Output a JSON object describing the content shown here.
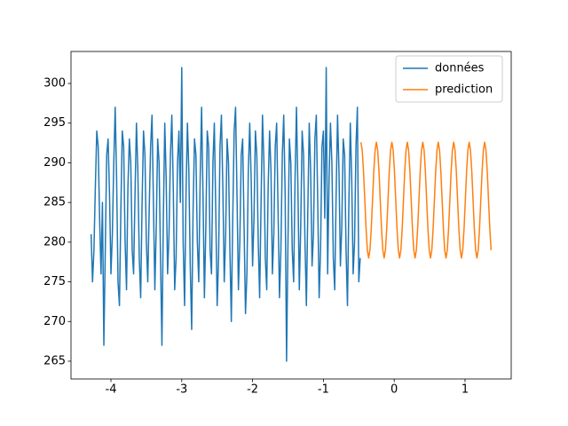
{
  "chart_data": {
    "type": "line",
    "xlim": [
      -4.564,
      1.652
    ],
    "ylim": [
      262.76,
      304.03
    ],
    "xticks": [
      -4,
      -3,
      -2,
      -1,
      0,
      1
    ],
    "yticks": [
      265,
      270,
      275,
      280,
      285,
      290,
      295,
      300
    ],
    "legend": "upper right",
    "series": [
      {
        "name": "données",
        "color": "#1f77b4",
        "x": [
          -4.28,
          -4.26,
          -4.24,
          -4.22,
          -4.2,
          -4.18,
          -4.16,
          -4.14,
          -4.12,
          -4.1,
          -4.08,
          -4.06,
          -4.04,
          -4.02,
          -4.0,
          -3.98,
          -3.96,
          -3.94,
          -3.92,
          -3.9,
          -3.88,
          -3.86,
          -3.84,
          -3.82,
          -3.8,
          -3.78,
          -3.76,
          -3.74,
          -3.72,
          -3.7,
          -3.68,
          -3.66,
          -3.64,
          -3.62,
          -3.6,
          -3.58,
          -3.56,
          -3.54,
          -3.52,
          -3.5,
          -3.48,
          -3.46,
          -3.44,
          -3.42,
          -3.4,
          -3.38,
          -3.36,
          -3.34,
          -3.32,
          -3.3,
          -3.28,
          -3.26,
          -3.24,
          -3.22,
          -3.2,
          -3.18,
          -3.16,
          -3.14,
          -3.12,
          -3.1,
          -3.08,
          -3.06,
          -3.04,
          -3.02,
          -3.0,
          -2.98,
          -2.96,
          -2.94,
          -2.92,
          -2.9,
          -2.88,
          -2.86,
          -2.84,
          -2.82,
          -2.8,
          -2.78,
          -2.76,
          -2.74,
          -2.72,
          -2.7,
          -2.68,
          -2.66,
          -2.64,
          -2.62,
          -2.6,
          -2.58,
          -2.56,
          -2.54,
          -2.52,
          -2.5,
          -2.48,
          -2.46,
          -2.44,
          -2.42,
          -2.4,
          -2.38,
          -2.36,
          -2.34,
          -2.32,
          -2.3,
          -2.28,
          -2.26,
          -2.24,
          -2.22,
          -2.2,
          -2.18,
          -2.16,
          -2.14,
          -2.12,
          -2.1,
          -2.08,
          -2.06,
          -2.04,
          -2.02,
          -2.0,
          -1.98,
          -1.96,
          -1.94,
          -1.92,
          -1.9,
          -1.88,
          -1.86,
          -1.84,
          -1.82,
          -1.8,
          -1.78,
          -1.76,
          -1.74,
          -1.72,
          -1.7,
          -1.68,
          -1.66,
          -1.64,
          -1.62,
          -1.6,
          -1.58,
          -1.56,
          -1.54,
          -1.52,
          -1.5,
          -1.48,
          -1.46,
          -1.44,
          -1.42,
          -1.4,
          -1.38,
          -1.36,
          -1.34,
          -1.32,
          -1.3,
          -1.28,
          -1.26,
          -1.24,
          -1.22,
          -1.2,
          -1.18,
          -1.16,
          -1.14,
          -1.12,
          -1.1,
          -1.08,
          -1.06,
          -1.04,
          -1.02,
          -1.0,
          -0.98,
          -0.96,
          -0.94,
          -0.92,
          -0.9,
          -0.88,
          -0.86,
          -0.84,
          -0.82,
          -0.8,
          -0.78,
          -0.76,
          -0.74,
          -0.72,
          -0.7,
          -0.68,
          -0.66,
          -0.64,
          -0.62,
          -0.6,
          -0.58,
          -0.56,
          -0.54,
          -0.52,
          -0.5,
          -0.48
        ],
        "values": [
          281,
          275,
          279,
          287,
          294,
          292,
          283,
          276,
          285,
          267,
          279,
          291,
          293,
          286,
          276,
          281,
          290,
          297,
          288,
          275,
          272,
          284,
          294,
          292,
          280,
          274,
          287,
          293,
          290,
          279,
          276,
          286,
          295,
          289,
          278,
          273,
          285,
          294,
          291,
          280,
          275,
          284,
          292,
          296,
          285,
          274,
          282,
          293,
          290,
          278,
          267,
          283,
          295,
          288,
          276,
          281,
          291,
          296,
          287,
          274,
          278,
          290,
          294,
          285,
          302,
          280,
          272,
          286,
          295,
          289,
          277,
          269,
          284,
          293,
          291,
          280,
          275,
          288,
          297,
          286,
          273,
          282,
          294,
          292,
          279,
          276,
          290,
          295,
          284,
          272,
          278,
          292,
          296,
          287,
          275,
          281,
          293,
          290,
          279,
          270,
          283,
          294,
          297,
          286,
          274,
          280,
          291,
          293,
          282,
          271,
          276,
          289,
          295,
          288,
          277,
          283,
          294,
          291,
          280,
          273,
          285,
          296,
          290,
          278,
          274,
          287,
          294,
          289,
          276,
          281,
          292,
          295,
          284,
          273,
          279,
          291,
          296,
          286,
          265,
          280,
          293,
          290,
          279,
          275,
          288,
          297,
          287,
          274,
          282,
          294,
          291,
          280,
          272,
          284,
          295,
          289,
          277,
          281,
          293,
          296,
          285,
          273,
          279,
          292,
          294,
          283,
          302,
          276,
          288,
          295,
          290,
          278,
          274,
          286,
          296,
          289,
          277,
          282,
          293,
          291,
          279,
          272,
          285,
          295,
          288,
          276,
          280,
          292,
          297,
          275,
          278
        ]
      },
      {
        "name": "prediction",
        "color": "#ff7f0e",
        "x": [
          -0.47,
          -0.4518,
          -0.4336,
          -0.4154,
          -0.3972,
          -0.379,
          -0.3608,
          -0.3426,
          -0.3244,
          -0.3062,
          -0.288,
          -0.2698,
          -0.2516,
          -0.2334,
          -0.2152,
          -0.197,
          -0.1788,
          -0.1606,
          -0.1424,
          -0.1242,
          -0.106,
          -0.0878,
          -0.0696,
          -0.0514,
          -0.0332,
          -0.015,
          0.0032,
          0.0214,
          0.0396,
          0.0578,
          0.076,
          0.0942,
          0.1124,
          0.1306,
          0.1488,
          0.167,
          0.1852,
          0.2034,
          0.2216,
          0.2398,
          0.258,
          0.2762,
          0.2944,
          0.3126,
          0.3308,
          0.349,
          0.3672,
          0.3854,
          0.4036,
          0.4218,
          0.44,
          0.4582,
          0.4764,
          0.4946,
          0.5128,
          0.531,
          0.5492,
          0.5674,
          0.5856,
          0.6038,
          0.622,
          0.6402,
          0.6584,
          0.6766,
          0.6948,
          0.713,
          0.7312,
          0.7494,
          0.7676,
          0.7858,
          0.804,
          0.8222,
          0.8404,
          0.8586,
          0.8768,
          0.895,
          0.9132,
          0.9314,
          0.9496,
          0.9678,
          0.986,
          1.0042,
          1.0224,
          1.0406,
          1.0588,
          1.077,
          1.0952,
          1.1134,
          1.1316,
          1.1498,
          1.168,
          1.1862,
          1.2044,
          1.2226,
          1.2408,
          1.259,
          1.2772,
          1.2954,
          1.3136,
          1.3318,
          1.35,
          1.3682
        ],
        "values": [
          292.6,
          291.6,
          288.95,
          285.3,
          281.65,
          279.0,
          278.0,
          279.0,
          281.65,
          285.3,
          288.95,
          291.6,
          292.6,
          291.6,
          288.95,
          285.3,
          281.65,
          279.0,
          278.0,
          279.0,
          281.65,
          285.3,
          288.95,
          291.6,
          292.6,
          291.6,
          288.95,
          285.3,
          281.65,
          279.0,
          278.0,
          279.0,
          281.65,
          285.3,
          288.95,
          291.6,
          292.6,
          291.6,
          288.95,
          285.3,
          281.65,
          279.0,
          278.0,
          279.0,
          281.65,
          285.3,
          288.95,
          291.6,
          292.6,
          291.6,
          288.95,
          285.3,
          281.65,
          279.0,
          278.0,
          279.0,
          281.65,
          285.3,
          288.95,
          291.6,
          292.6,
          291.6,
          288.95,
          285.3,
          281.65,
          279.0,
          278.0,
          279.0,
          281.65,
          285.3,
          288.95,
          291.6,
          292.6,
          291.6,
          288.95,
          285.3,
          281.65,
          279.0,
          278.0,
          279.0,
          281.65,
          285.3,
          288.95,
          291.6,
          292.6,
          291.6,
          288.95,
          285.3,
          281.65,
          279.0,
          278.0,
          279.0,
          281.65,
          285.3,
          288.95,
          291.6,
          292.6,
          291.6,
          288.95,
          285.3,
          281.65,
          279.0
        ]
      }
    ]
  }
}
